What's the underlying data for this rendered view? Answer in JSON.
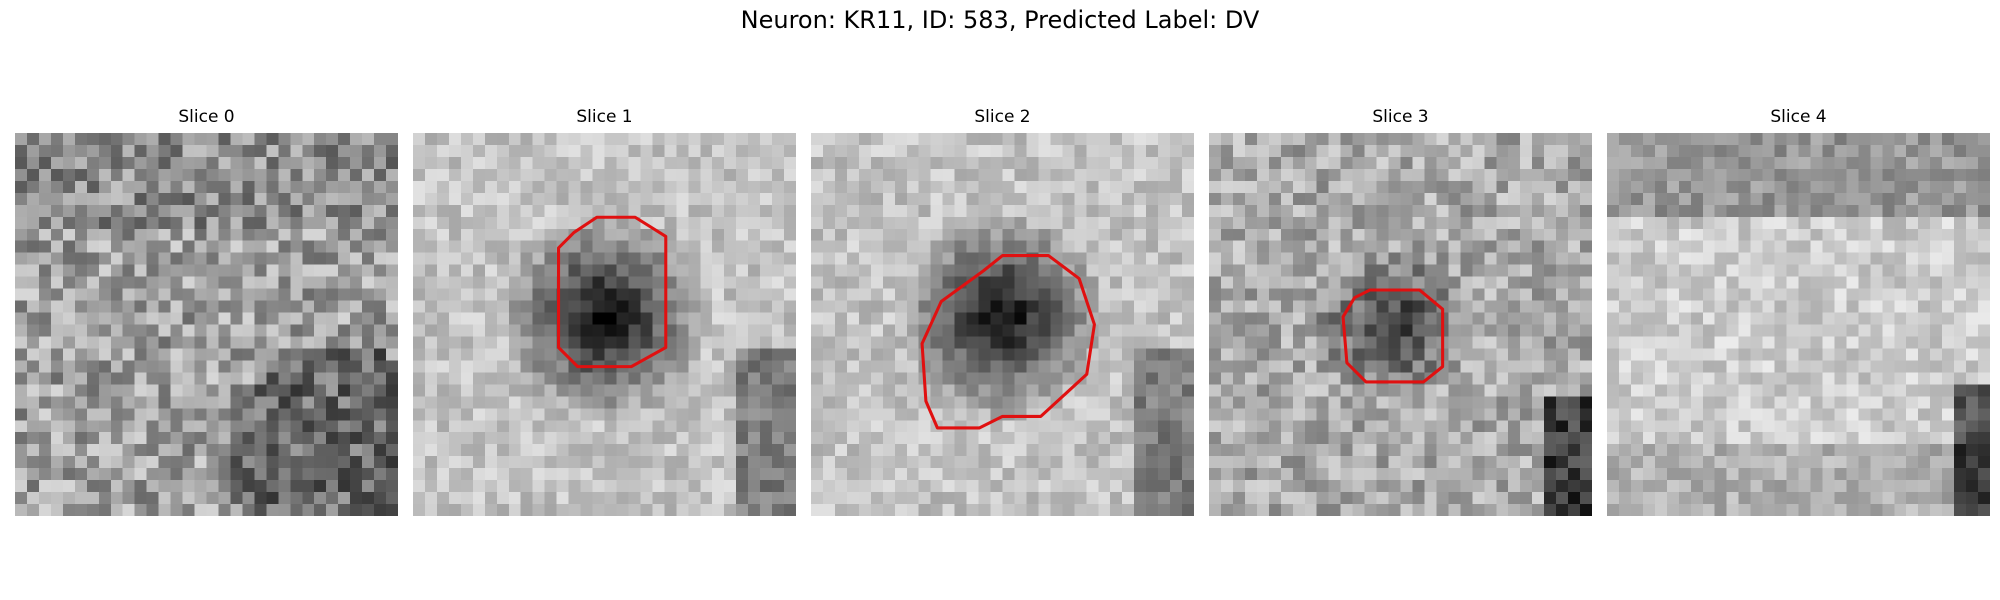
{
  "title": "Neuron: KR11, ID: 583, Predicted Label: DV",
  "colors": {
    "contour": "#e01010"
  },
  "slices": [
    {
      "label": "Slice 0",
      "tone": "noisy-gray",
      "contour": []
    },
    {
      "label": "Slice 1",
      "tone": "dark-blob",
      "contour": [
        [
          0.42,
          0.26
        ],
        [
          0.48,
          0.22
        ],
        [
          0.58,
          0.22
        ],
        [
          0.66,
          0.27
        ],
        [
          0.66,
          0.56
        ],
        [
          0.57,
          0.61
        ],
        [
          0.43,
          0.61
        ],
        [
          0.38,
          0.56
        ],
        [
          0.38,
          0.3
        ]
      ]
    },
    {
      "label": "Slice 2",
      "tone": "dark-blob",
      "contour": [
        [
          0.45,
          0.36
        ],
        [
          0.5,
          0.32
        ],
        [
          0.62,
          0.32
        ],
        [
          0.7,
          0.38
        ],
        [
          0.74,
          0.5
        ],
        [
          0.72,
          0.63
        ],
        [
          0.6,
          0.74
        ],
        [
          0.5,
          0.74
        ],
        [
          0.44,
          0.77
        ],
        [
          0.33,
          0.77
        ],
        [
          0.3,
          0.7
        ],
        [
          0.29,
          0.55
        ],
        [
          0.34,
          0.44
        ]
      ]
    },
    {
      "label": "Slice 3",
      "tone": "medium-blob",
      "contour": [
        [
          0.38,
          0.43
        ],
        [
          0.42,
          0.41
        ],
        [
          0.55,
          0.41
        ],
        [
          0.61,
          0.46
        ],
        [
          0.61,
          0.61
        ],
        [
          0.56,
          0.65
        ],
        [
          0.41,
          0.65
        ],
        [
          0.36,
          0.6
        ],
        [
          0.35,
          0.48
        ]
      ]
    },
    {
      "label": "Slice 4",
      "tone": "bright",
      "contour": []
    }
  ]
}
